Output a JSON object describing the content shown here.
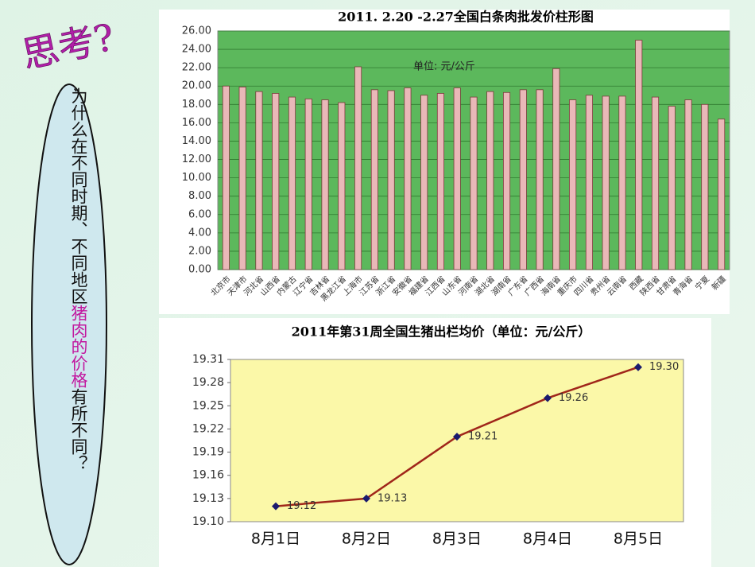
{
  "slide": {
    "heading": "思考?",
    "question": [
      "为什么在不同时期、不同地区",
      "猪肉的价格",
      "有所不同？"
    ]
  },
  "chart_data": [
    {
      "type": "bar",
      "title": "2011. 2.20 -2.27全国白条肉批发价柱形图",
      "annotation": "单位:  元/公斤",
      "categories": [
        "北京市",
        "天津市",
        "河北省",
        "山西省",
        "内蒙古",
        "辽宁省",
        "吉林省",
        "黑龙江省",
        "上海市",
        "江苏省",
        "浙江省",
        "安徽省",
        "福建省",
        "江西省",
        "山东省",
        "河南省",
        "湖北省",
        "湖南省",
        "广东省",
        "广西省",
        "海南省",
        "重庆市",
        "四川省",
        "贵州省",
        "云南省",
        "西藏",
        "陕西省",
        "甘肃省",
        "青海省",
        "宁夏",
        "新疆"
      ],
      "values": [
        20.0,
        19.9,
        19.4,
        19.2,
        18.8,
        18.6,
        18.5,
        18.2,
        22.1,
        19.6,
        19.5,
        19.8,
        19.0,
        19.2,
        19.8,
        18.8,
        19.4,
        19.3,
        19.6,
        19.6,
        21.9,
        18.5,
        19.0,
        18.9,
        18.9,
        25.0,
        18.8,
        17.8,
        18.5,
        18.0,
        16.4
      ],
      "color": "#e9b8b8",
      "ylim": [
        0,
        26
      ],
      "yticks": [
        {
          "value": 0,
          "label": "0.00"
        },
        {
          "value": 2,
          "label": "2.00"
        },
        {
          "value": 4,
          "label": "4.00"
        },
        {
          "value": 6,
          "label": "6.00"
        },
        {
          "value": 8,
          "label": "8.00"
        },
        {
          "value": 10,
          "label": "10.00"
        },
        {
          "value": 12,
          "label": "12.00"
        },
        {
          "value": 14,
          "label": "14.00"
        },
        {
          "value": 16,
          "label": "16.00"
        },
        {
          "value": 18,
          "label": "18.00"
        },
        {
          "value": 20,
          "label": "20.00"
        },
        {
          "value": 22,
          "label": "22.00"
        },
        {
          "value": 24,
          "label": "24.00"
        },
        {
          "value": 26,
          "label": "26.00"
        }
      ],
      "grid": true
    },
    {
      "type": "line",
      "title": "2011年第31周全国生猪出栏均价（单位：元/公斤）",
      "categories": [
        "8月1日",
        "8月2日",
        "8月3日",
        "8月4日",
        "8月5日"
      ],
      "values": [
        19.12,
        19.13,
        19.21,
        19.26,
        19.3
      ],
      "value_labels": [
        "19.12",
        "19.13",
        "19.21",
        "19.26",
        "19.30"
      ],
      "color": "#a0261a",
      "marker_color": "#1a1a6e",
      "ylim": [
        19.1,
        19.31
      ],
      "yticks": [
        {
          "value": 19.1,
          "label": "19.10"
        },
        19.13,
        19.16,
        19.19,
        19.22,
        19.25,
        19.28,
        19.31
      ]
    }
  ]
}
